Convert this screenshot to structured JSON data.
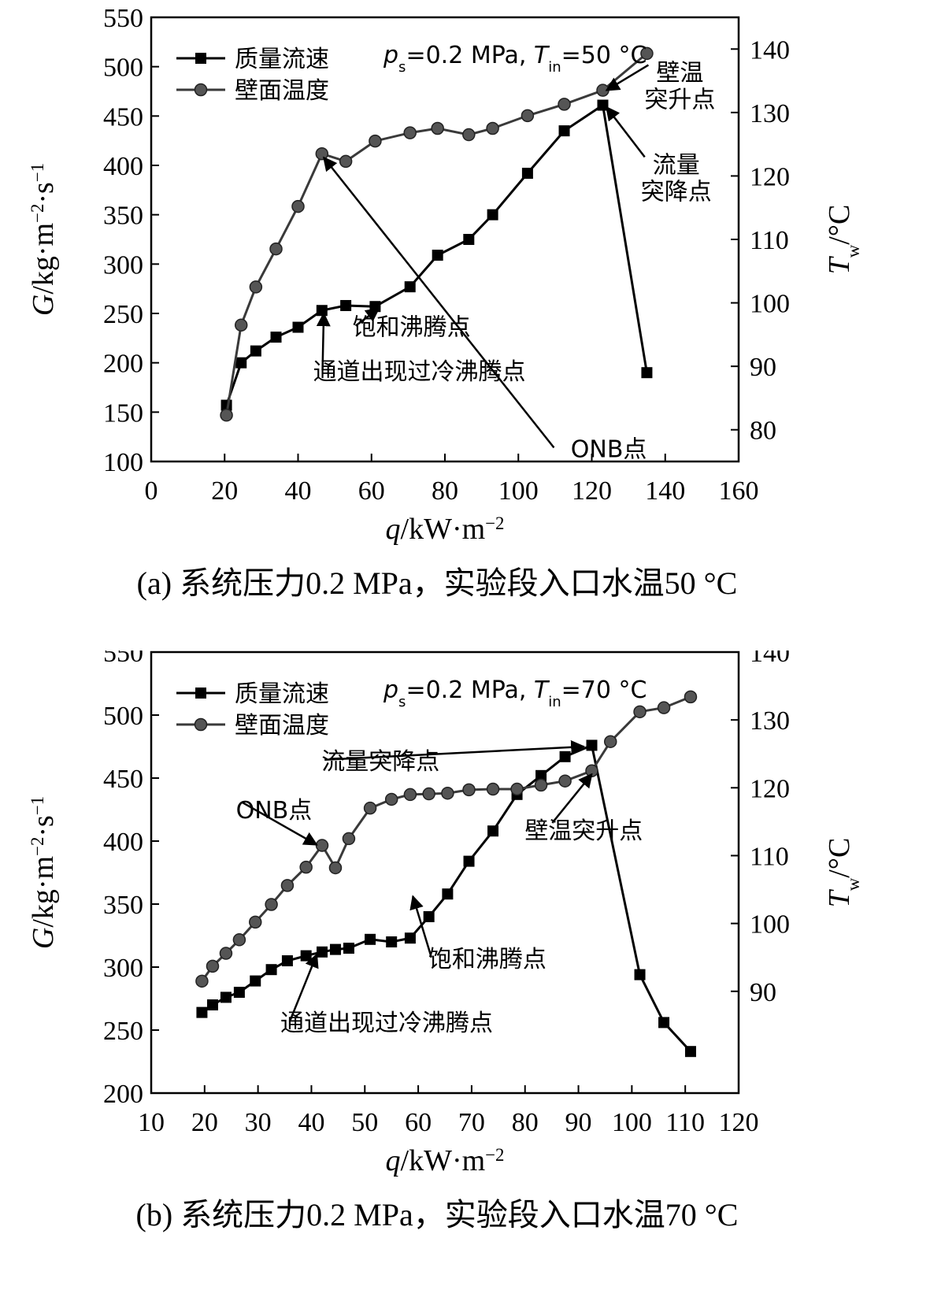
{
  "chart_data": [
    {
      "type": "line",
      "panel": "a",
      "caption": "(a) 系统压力0.2 MPa，实验段入口水温50 °C",
      "condition": {
        "p_prefix": "p",
        "p_sub": "s",
        "p_value": "=0.2 MPa, ",
        "t_prefix": "T",
        "t_sub": "in",
        "t_value": "=50 °C"
      },
      "xlabel": {
        "var": "q",
        "unit": "/kW·m",
        "exp": "−2"
      },
      "ylabel": {
        "var": "G",
        "unit": "/kg·m",
        "exp1": "−2",
        "mid": "·s",
        "exp2": "−1"
      },
      "y2label": {
        "var": "T",
        "sub": "w",
        "unit": "/°C"
      },
      "xlim": [
        0,
        160
      ],
      "xticks": [
        0,
        20,
        40,
        60,
        80,
        100,
        120,
        140,
        160
      ],
      "ylim": [
        100,
        550
      ],
      "yticks": [
        100,
        150,
        200,
        250,
        300,
        350,
        400,
        450,
        500,
        550
      ],
      "y2lim": [
        75,
        145
      ],
      "y2ticks": [
        80,
        90,
        100,
        110,
        120,
        130,
        140
      ],
      "legend_position": "top-left",
      "series": [
        {
          "name": "质量流速",
          "axis": "left",
          "marker": "square",
          "x": [
            20.5,
            24.5,
            28.5,
            34,
            40,
            46.5,
            53,
            61,
            70.5,
            78,
            86.5,
            93,
            102.5,
            112.5,
            123,
            135
          ],
          "y": [
            157,
            200,
            212,
            226,
            236,
            253,
            258,
            257,
            277,
            309,
            325,
            350,
            392,
            435,
            461,
            190
          ]
        },
        {
          "name": "壁面温度",
          "axis": "right",
          "marker": "circle",
          "x": [
            20.5,
            24.5,
            28.5,
            34,
            40,
            46.5,
            53,
            61,
            70.5,
            78,
            86.5,
            93,
            102.5,
            112.5,
            123,
            135
          ],
          "y": [
            82.3,
            96.5,
            102.5,
            108.5,
            115.2,
            123.5,
            122.3,
            125.5,
            126.8,
            127.5,
            126.5,
            127.5,
            129.5,
            131.3,
            133.5,
            139.3
          ]
        }
      ],
      "annotations": [
        {
          "lines": [
            "ONB点"
          ],
          "x": 135,
          "y": 104.5,
          "axis": "left",
          "anchor": "end",
          "arrow_to": [
            47,
            408
          ]
        },
        {
          "lines": [
            "饱和沸腾点"
          ],
          "x": 87,
          "y": 228,
          "axis": "left",
          "anchor": "end",
          "arrow_to": [
            62,
            255
          ]
        },
        {
          "lines": [
            "通道出现过冷沸腾点"
          ],
          "x": 102,
          "y": 183,
          "axis": "left",
          "anchor": "end",
          "arrow_to": [
            47,
            250
          ]
        },
        {
          "lines": [
            "壁温",
            "突升点"
          ],
          "x": 144,
          "y": 135,
          "axis": "right",
          "anchor": "middle",
          "arrow_to": [
            124,
            133.5
          ]
        },
        {
          "lines": [
            "流量",
            "突降点"
          ],
          "x": 143,
          "y": 120.5,
          "axis": "right",
          "anchor": "middle",
          "arrow_to": [
            124,
            459
          ]
        }
      ]
    },
    {
      "type": "line",
      "panel": "b",
      "caption": "(b) 系统压力0.2 MPa，实验段入口水温70 °C",
      "condition": {
        "p_prefix": "p",
        "p_sub": "s",
        "p_value": "=0.2 MPa, ",
        "t_prefix": "T",
        "t_sub": "in",
        "t_value": "=70 °C"
      },
      "xlabel": {
        "var": "q",
        "unit": "/kW·m",
        "exp": "−2"
      },
      "ylabel": {
        "var": "G",
        "unit": "/kg·m",
        "exp1": "−2",
        "mid": "·s",
        "exp2": "−1"
      },
      "y2label": {
        "var": "T",
        "sub": "w",
        "unit": "/°C"
      },
      "xlim": [
        10,
        120
      ],
      "xticks": [
        10,
        20,
        30,
        40,
        50,
        60,
        70,
        80,
        90,
        100,
        110,
        120
      ],
      "ylim": [
        200,
        550
      ],
      "yticks": [
        200,
        250,
        300,
        350,
        400,
        450,
        500,
        550
      ],
      "y2lim": [
        75,
        140
      ],
      "y2ticks": [
        90,
        100,
        110,
        120,
        130,
        140
      ],
      "legend_position": "top-left",
      "series": [
        {
          "name": "质量流速",
          "axis": "left",
          "marker": "square",
          "x": [
            19.5,
            21.5,
            24,
            26.5,
            29.5,
            32.5,
            35.5,
            39,
            42,
            44.5,
            47,
            51,
            55,
            58.5,
            62,
            65.5,
            69.5,
            74,
            78.5,
            83,
            87.5,
            92.5,
            101.5,
            106,
            111
          ],
          "y": [
            264,
            270,
            276,
            280,
            289,
            298,
            305,
            309,
            312,
            314,
            315,
            322,
            320,
            323,
            340,
            358,
            384,
            408,
            437,
            452,
            467,
            476,
            294,
            256,
            233
          ]
        },
        {
          "name": "壁面温度",
          "axis": "right",
          "marker": "circle",
          "x": [
            19.5,
            21.5,
            24,
            26.5,
            29.5,
            32.5,
            35.5,
            39,
            42,
            44.5,
            47,
            51,
            55,
            58.5,
            62,
            65.5,
            69.5,
            74,
            78.5,
            83,
            87.5,
            92.5,
            96,
            101.5,
            106,
            111
          ],
          "y": [
            91.5,
            93.7,
            95.6,
            97.6,
            100.2,
            102.8,
            105.6,
            108.3,
            111.5,
            108.2,
            112.5,
            117,
            118.3,
            119,
            119.1,
            119.2,
            119.7,
            119.8,
            119.8,
            120.4,
            121,
            122.5,
            126.8,
            131.2,
            131.8,
            133.4
          ]
        }
      ],
      "annotations": [
        {
          "lines": [
            "流量突降点"
          ],
          "x": 64,
          "y": 457,
          "axis": "left",
          "anchor": "end",
          "arrow_to": [
            91,
            475
          ]
        },
        {
          "lines": [
            "ONB点"
          ],
          "x": 33,
          "y": 115.5,
          "axis": "right",
          "anchor": "middle",
          "arrow_to": [
            41,
            111.6
          ]
        },
        {
          "lines": [
            "壁温突升点"
          ],
          "x": 91,
          "y": 112.5,
          "axis": "right",
          "anchor": "middle",
          "arrow_to": [
            92.5,
            122
          ]
        },
        {
          "lines": [
            "饱和沸腾点"
          ],
          "x": 84,
          "y": 93.6,
          "axis": "right",
          "anchor": "end",
          "arrow_to": [
            59,
            104
          ]
        },
        {
          "lines": [
            "通道出现过冷沸腾点"
          ],
          "x": 74,
          "y": 249.5,
          "axis": "left",
          "anchor": "end",
          "arrow_to": [
            41,
            310
          ]
        }
      ]
    }
  ]
}
